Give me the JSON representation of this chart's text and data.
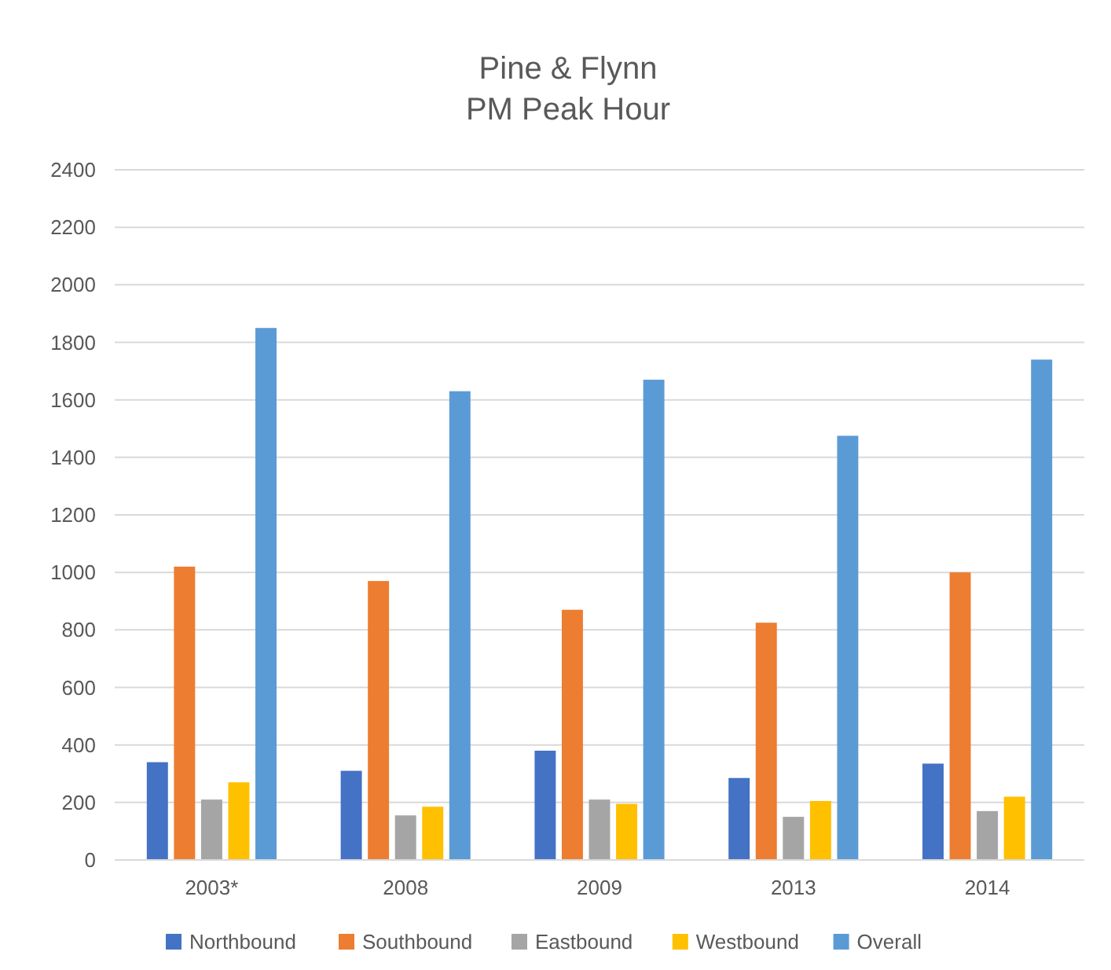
{
  "chart_data": {
    "type": "bar",
    "title": "Pine & Flynn",
    "subtitle": "PM Peak Hour",
    "categories": [
      "2003*",
      "2008",
      "2009",
      "2013",
      "2014"
    ],
    "series": [
      {
        "name": "Northbound",
        "color": "#4472c4",
        "values": [
          340,
          310,
          380,
          285,
          335
        ]
      },
      {
        "name": "Southbound",
        "color": "#ed7d31",
        "values": [
          1020,
          970,
          870,
          825,
          1000
        ]
      },
      {
        "name": "Eastbound",
        "color": "#a5a5a5",
        "values": [
          210,
          155,
          210,
          150,
          170
        ]
      },
      {
        "name": "Westbound",
        "color": "#ffc000",
        "values": [
          270,
          185,
          195,
          205,
          220
        ]
      },
      {
        "name": "Overall",
        "color": "#5b9bd5",
        "values": [
          1850,
          1630,
          1670,
          1475,
          1740
        ]
      }
    ],
    "ylim": [
      0,
      2400
    ],
    "yticks": [
      0,
      200,
      400,
      600,
      800,
      1000,
      1200,
      1400,
      1600,
      1800,
      2000,
      2200,
      2400
    ],
    "grid": "y",
    "legend": "bottom"
  }
}
